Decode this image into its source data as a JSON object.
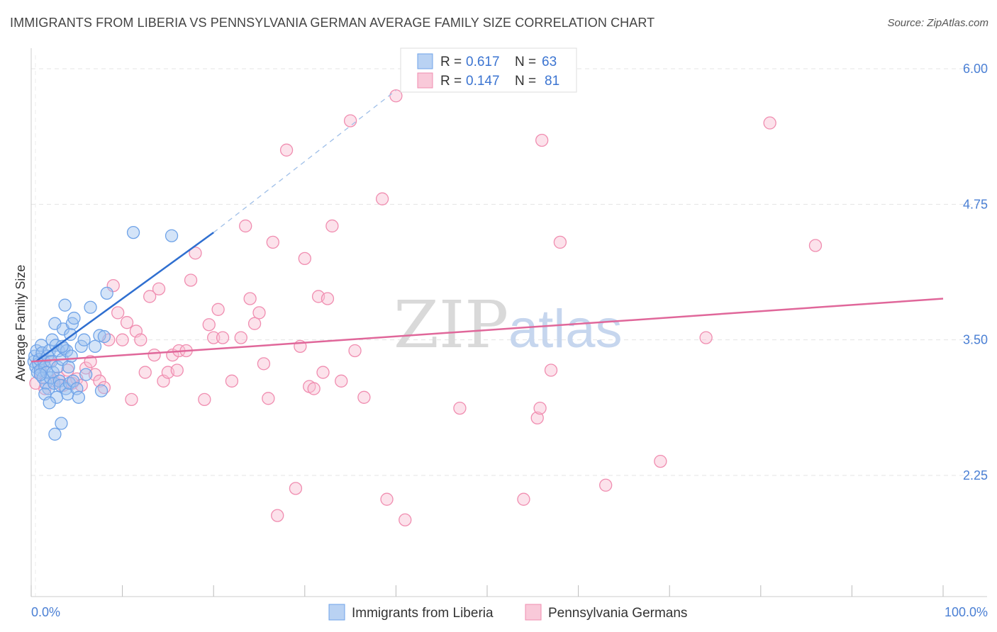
{
  "title": "IMMIGRANTS FROM LIBERIA VS PENNSYLVANIA GERMAN AVERAGE FAMILY SIZE CORRELATION CHART",
  "source": "Source: ZipAtlas.com",
  "watermark": {
    "zip": "ZIP",
    "atlas": "atlas"
  },
  "legend": {
    "r_label": "R =",
    "n_label": "N =",
    "items": [
      {
        "r": "0.617",
        "n": "63",
        "color": "#6fa3e8"
      },
      {
        "r": "0.147",
        "n": "81",
        "color": "#f08db0"
      }
    ]
  },
  "bottom_legend": [
    {
      "label": "Immigrants from Liberia",
      "color": "#6fa3e8"
    },
    {
      "label": "Pennsylvania Germans",
      "color": "#f08db0"
    }
  ],
  "chart_data": {
    "type": "scatter",
    "title": "IMMIGRANTS FROM LIBERIA VS PENNSYLVANIA GERMAN AVERAGE FAMILY SIZE CORRELATION CHART",
    "xlabel": "",
    "ylabel": "Average Family Size",
    "xlim": [
      0,
      100
    ],
    "ylim": [
      1.0,
      6.15
    ],
    "x_tick_labels": [
      "0.0%",
      "100.0%"
    ],
    "y_ticks": [
      2.25,
      3.5,
      4.75,
      6.0
    ],
    "y_tick_labels": [
      "2.25",
      "3.50",
      "4.75",
      "6.00"
    ],
    "grid": true,
    "series": [
      {
        "name": "Immigrants from Liberia",
        "color": "#6fa3e8",
        "trend": {
          "x": [
            0.5,
            20
          ],
          "y": [
            3.3,
            4.49
          ],
          "dashed_to": [
            40,
            5.8
          ]
        },
        "points": [
          [
            0.3,
            3.3
          ],
          [
            0.4,
            3.35
          ],
          [
            0.5,
            3.25
          ],
          [
            0.6,
            3.4
          ],
          [
            0.7,
            3.2
          ],
          [
            0.8,
            3.28
          ],
          [
            0.9,
            3.32
          ],
          [
            1.0,
            3.22
          ],
          [
            1.1,
            3.45
          ],
          [
            1.2,
            3.38
          ],
          [
            1.3,
            3.15
          ],
          [
            1.4,
            3.3
          ],
          [
            1.5,
            3.25
          ],
          [
            1.6,
            3.1
          ],
          [
            1.7,
            3.2
          ],
          [
            1.8,
            3.35
          ],
          [
            1.9,
            3.05
          ],
          [
            2.0,
            3.4
          ],
          [
            2.1,
            3.15
          ],
          [
            2.2,
            3.3
          ],
          [
            2.3,
            3.5
          ],
          [
            2.4,
            3.2
          ],
          [
            2.5,
            3.1
          ],
          [
            2.6,
            3.65
          ],
          [
            2.7,
            3.45
          ],
          [
            2.8,
            2.97
          ],
          [
            2.9,
            3.25
          ],
          [
            3.0,
            3.4
          ],
          [
            3.1,
            3.12
          ],
          [
            3.2,
            3.08
          ],
          [
            3.3,
            2.73
          ],
          [
            3.4,
            3.32
          ],
          [
            3.5,
            3.6
          ],
          [
            3.6,
            3.42
          ],
          [
            3.7,
            3.82
          ],
          [
            3.8,
            3.05
          ],
          [
            3.9,
            3.4
          ],
          [
            4.0,
            3.0
          ],
          [
            4.1,
            3.25
          ],
          [
            4.2,
            3.1
          ],
          [
            4.3,
            3.55
          ],
          [
            4.4,
            3.35
          ],
          [
            4.5,
            3.65
          ],
          [
            4.6,
            3.12
          ],
          [
            4.7,
            3.7
          ],
          [
            5.0,
            3.05
          ],
          [
            5.2,
            2.97
          ],
          [
            5.5,
            3.44
          ],
          [
            5.8,
            3.5
          ],
          [
            6.0,
            3.18
          ],
          [
            6.5,
            3.8
          ],
          [
            7.0,
            3.44
          ],
          [
            7.5,
            3.54
          ],
          [
            7.7,
            3.03
          ],
          [
            8.0,
            3.53
          ],
          [
            8.3,
            3.93
          ],
          [
            11.2,
            4.49
          ],
          [
            15.4,
            4.46
          ],
          [
            1.5,
            3.0
          ],
          [
            2.0,
            2.92
          ],
          [
            2.6,
            2.63
          ],
          [
            1.0,
            3.18
          ],
          [
            3.4,
            3.44
          ]
        ]
      },
      {
        "name": "Pennsylvania Germans",
        "color": "#f08db0",
        "trend": {
          "x": [
            0,
            100
          ],
          "y": [
            3.3,
            3.88
          ]
        },
        "points": [
          [
            0.5,
            3.1
          ],
          [
            1.0,
            3.2
          ],
          [
            1.5,
            3.05
          ],
          [
            2.0,
            3.3
          ],
          [
            2.5,
            3.12
          ],
          [
            3.0,
            3.15
          ],
          [
            3.5,
            3.08
          ],
          [
            4.0,
            3.22
          ],
          [
            4.5,
            3.1
          ],
          [
            5.0,
            3.14
          ],
          [
            5.5,
            3.08
          ],
          [
            6.0,
            3.24
          ],
          [
            6.5,
            3.3
          ],
          [
            7.0,
            3.18
          ],
          [
            7.5,
            3.12
          ],
          [
            8.0,
            3.06
          ],
          [
            8.5,
            3.5
          ],
          [
            9.0,
            4.0
          ],
          [
            9.5,
            3.75
          ],
          [
            10.0,
            3.5
          ],
          [
            10.5,
            3.66
          ],
          [
            11.0,
            2.95
          ],
          [
            11.5,
            3.58
          ],
          [
            12.0,
            3.5
          ],
          [
            12.5,
            3.2
          ],
          [
            13.0,
            3.9
          ],
          [
            13.5,
            3.36
          ],
          [
            14.0,
            3.97
          ],
          [
            14.5,
            3.12
          ],
          [
            15.0,
            3.2
          ],
          [
            15.5,
            3.36
          ],
          [
            16.0,
            3.22
          ],
          [
            16.2,
            3.4
          ],
          [
            17.0,
            3.4
          ],
          [
            17.5,
            4.05
          ],
          [
            18.0,
            4.3
          ],
          [
            19.0,
            2.95
          ],
          [
            19.5,
            3.64
          ],
          [
            20.0,
            3.52
          ],
          [
            20.5,
            3.78
          ],
          [
            21.0,
            3.52
          ],
          [
            22.0,
            3.12
          ],
          [
            23.0,
            3.52
          ],
          [
            23.5,
            4.55
          ],
          [
            24.0,
            3.88
          ],
          [
            24.5,
            3.65
          ],
          [
            25.0,
            3.75
          ],
          [
            25.5,
            3.28
          ],
          [
            26.0,
            2.96
          ],
          [
            26.5,
            4.4
          ],
          [
            27.0,
            1.88
          ],
          [
            28.0,
            5.25
          ],
          [
            29.0,
            2.13
          ],
          [
            29.5,
            3.44
          ],
          [
            30.0,
            4.25
          ],
          [
            30.5,
            3.07
          ],
          [
            31.0,
            3.05
          ],
          [
            31.5,
            3.9
          ],
          [
            32.0,
            3.2
          ],
          [
            32.5,
            3.88
          ],
          [
            33.0,
            4.55
          ],
          [
            34.0,
            3.12
          ],
          [
            35.0,
            5.52
          ],
          [
            35.5,
            3.4
          ],
          [
            36.5,
            2.97
          ],
          [
            38.5,
            4.8
          ],
          [
            39.0,
            2.03
          ],
          [
            40.0,
            5.75
          ],
          [
            41.0,
            1.84
          ],
          [
            47.0,
            2.87
          ],
          [
            54.0,
            2.03
          ],
          [
            55.5,
            2.78
          ],
          [
            55.8,
            2.87
          ],
          [
            56.0,
            5.34
          ],
          [
            57.0,
            3.22
          ],
          [
            58.0,
            4.4
          ],
          [
            63.0,
            2.16
          ],
          [
            69.0,
            2.38
          ],
          [
            74.0,
            3.52
          ],
          [
            81.0,
            5.5
          ],
          [
            86.0,
            4.37
          ]
        ]
      }
    ]
  }
}
